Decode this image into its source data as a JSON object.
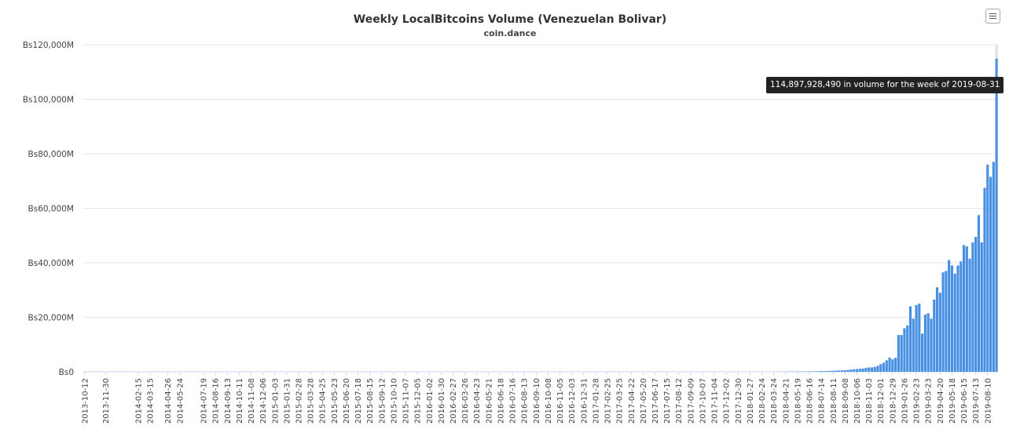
{
  "chart_data": {
    "type": "bar",
    "title": "Weekly LocalBitcoins Volume (Venezuelan Bolivar)",
    "subtitle": "coin.dance",
    "xlabel": "",
    "ylabel": "",
    "ylim": [
      0,
      120000000000
    ],
    "y_tick_labels": [
      "Bs0",
      "Bs20,000M",
      "Bs40,000M",
      "Bs60,000M",
      "Bs80,000M",
      "Bs100,000M",
      "Bs120,000M"
    ],
    "y_tick_values": [
      0,
      20000000000,
      40000000000,
      60000000000,
      80000000000,
      100000000000,
      120000000000
    ],
    "x_tick_labels": [
      "2013-10-12",
      "2013-11-30",
      "2014-02-15",
      "2014-03-15",
      "2014-04-26",
      "2014-05-24",
      "2014-07-19",
      "2014-08-16",
      "2014-09-13",
      "2014-10-11",
      "2014-11-08",
      "2014-12-06",
      "2015-01-03",
      "2015-01-31",
      "2015-02-28",
      "2015-03-28",
      "2015-04-25",
      "2015-05-23",
      "2015-06-20",
      "2015-07-18",
      "2015-08-15",
      "2015-09-12",
      "2015-10-10",
      "2015-11-07",
      "2015-12-05",
      "2016-01-02",
      "2016-01-30",
      "2016-02-27",
      "2016-03-26",
      "2016-04-23",
      "2016-05-21",
      "2016-06-18",
      "2016-07-16",
      "2016-08-13",
      "2016-09-10",
      "2016-10-08",
      "2016-11-05",
      "2016-12-03",
      "2016-12-31",
      "2017-01-28",
      "2017-02-25",
      "2017-03-25",
      "2017-04-22",
      "2017-05-20",
      "2017-06-17",
      "2017-07-15",
      "2017-08-12",
      "2017-09-09",
      "2017-10-07",
      "2017-11-04",
      "2017-12-02",
      "2017-12-30",
      "2018-01-27",
      "2018-02-24",
      "2018-03-24",
      "2018-04-21",
      "2018-05-19",
      "2018-06-16",
      "2018-07-14",
      "2018-08-11",
      "2018-09-08",
      "2018-10-06",
      "2018-11-03",
      "2018-12-01",
      "2018-12-29",
      "2019-01-26",
      "2019-02-23",
      "2019-03-23",
      "2019-04-20",
      "2019-05-18",
      "2019-06-15",
      "2019-07-13",
      "2019-08-10"
    ],
    "bar_color": "#4a90e2",
    "recent_values_billions": [
      0.05,
      0.05,
      0.06,
      0.07,
      0.08,
      0.09,
      0.1,
      0.12,
      0.14,
      0.16,
      0.18,
      0.2,
      0.22,
      0.25,
      0.28,
      0.3,
      0.35,
      0.4,
      0.45,
      0.5,
      0.55,
      0.6,
      0.7,
      0.8,
      0.9,
      1.0,
      1.1,
      1.2,
      1.4,
      1.6,
      1.6,
      1.8,
      2.2,
      2.8,
      3.3,
      4.2,
      5.2,
      4.6,
      5.1,
      13.5,
      13.5,
      16.0,
      17.0,
      24.0,
      19.5,
      24.5,
      25.0,
      14.0,
      21.0,
      21.5,
      19.5,
      26.5,
      31.0,
      29.0,
      36.5,
      37.0,
      41.0,
      39.0,
      36.0,
      39.0,
      40.5,
      46.5,
      46.0,
      41.5,
      47.5,
      49.5,
      57.5,
      47.5,
      67.5,
      76.0,
      71.5,
      77.0,
      114.9
    ],
    "highlight_value": 114897928490
  },
  "tooltip": {
    "text": "114,897,928,490 in volume for the week of 2019-08-31"
  },
  "export_menu": {
    "icon": "hamburger-menu-icon"
  }
}
